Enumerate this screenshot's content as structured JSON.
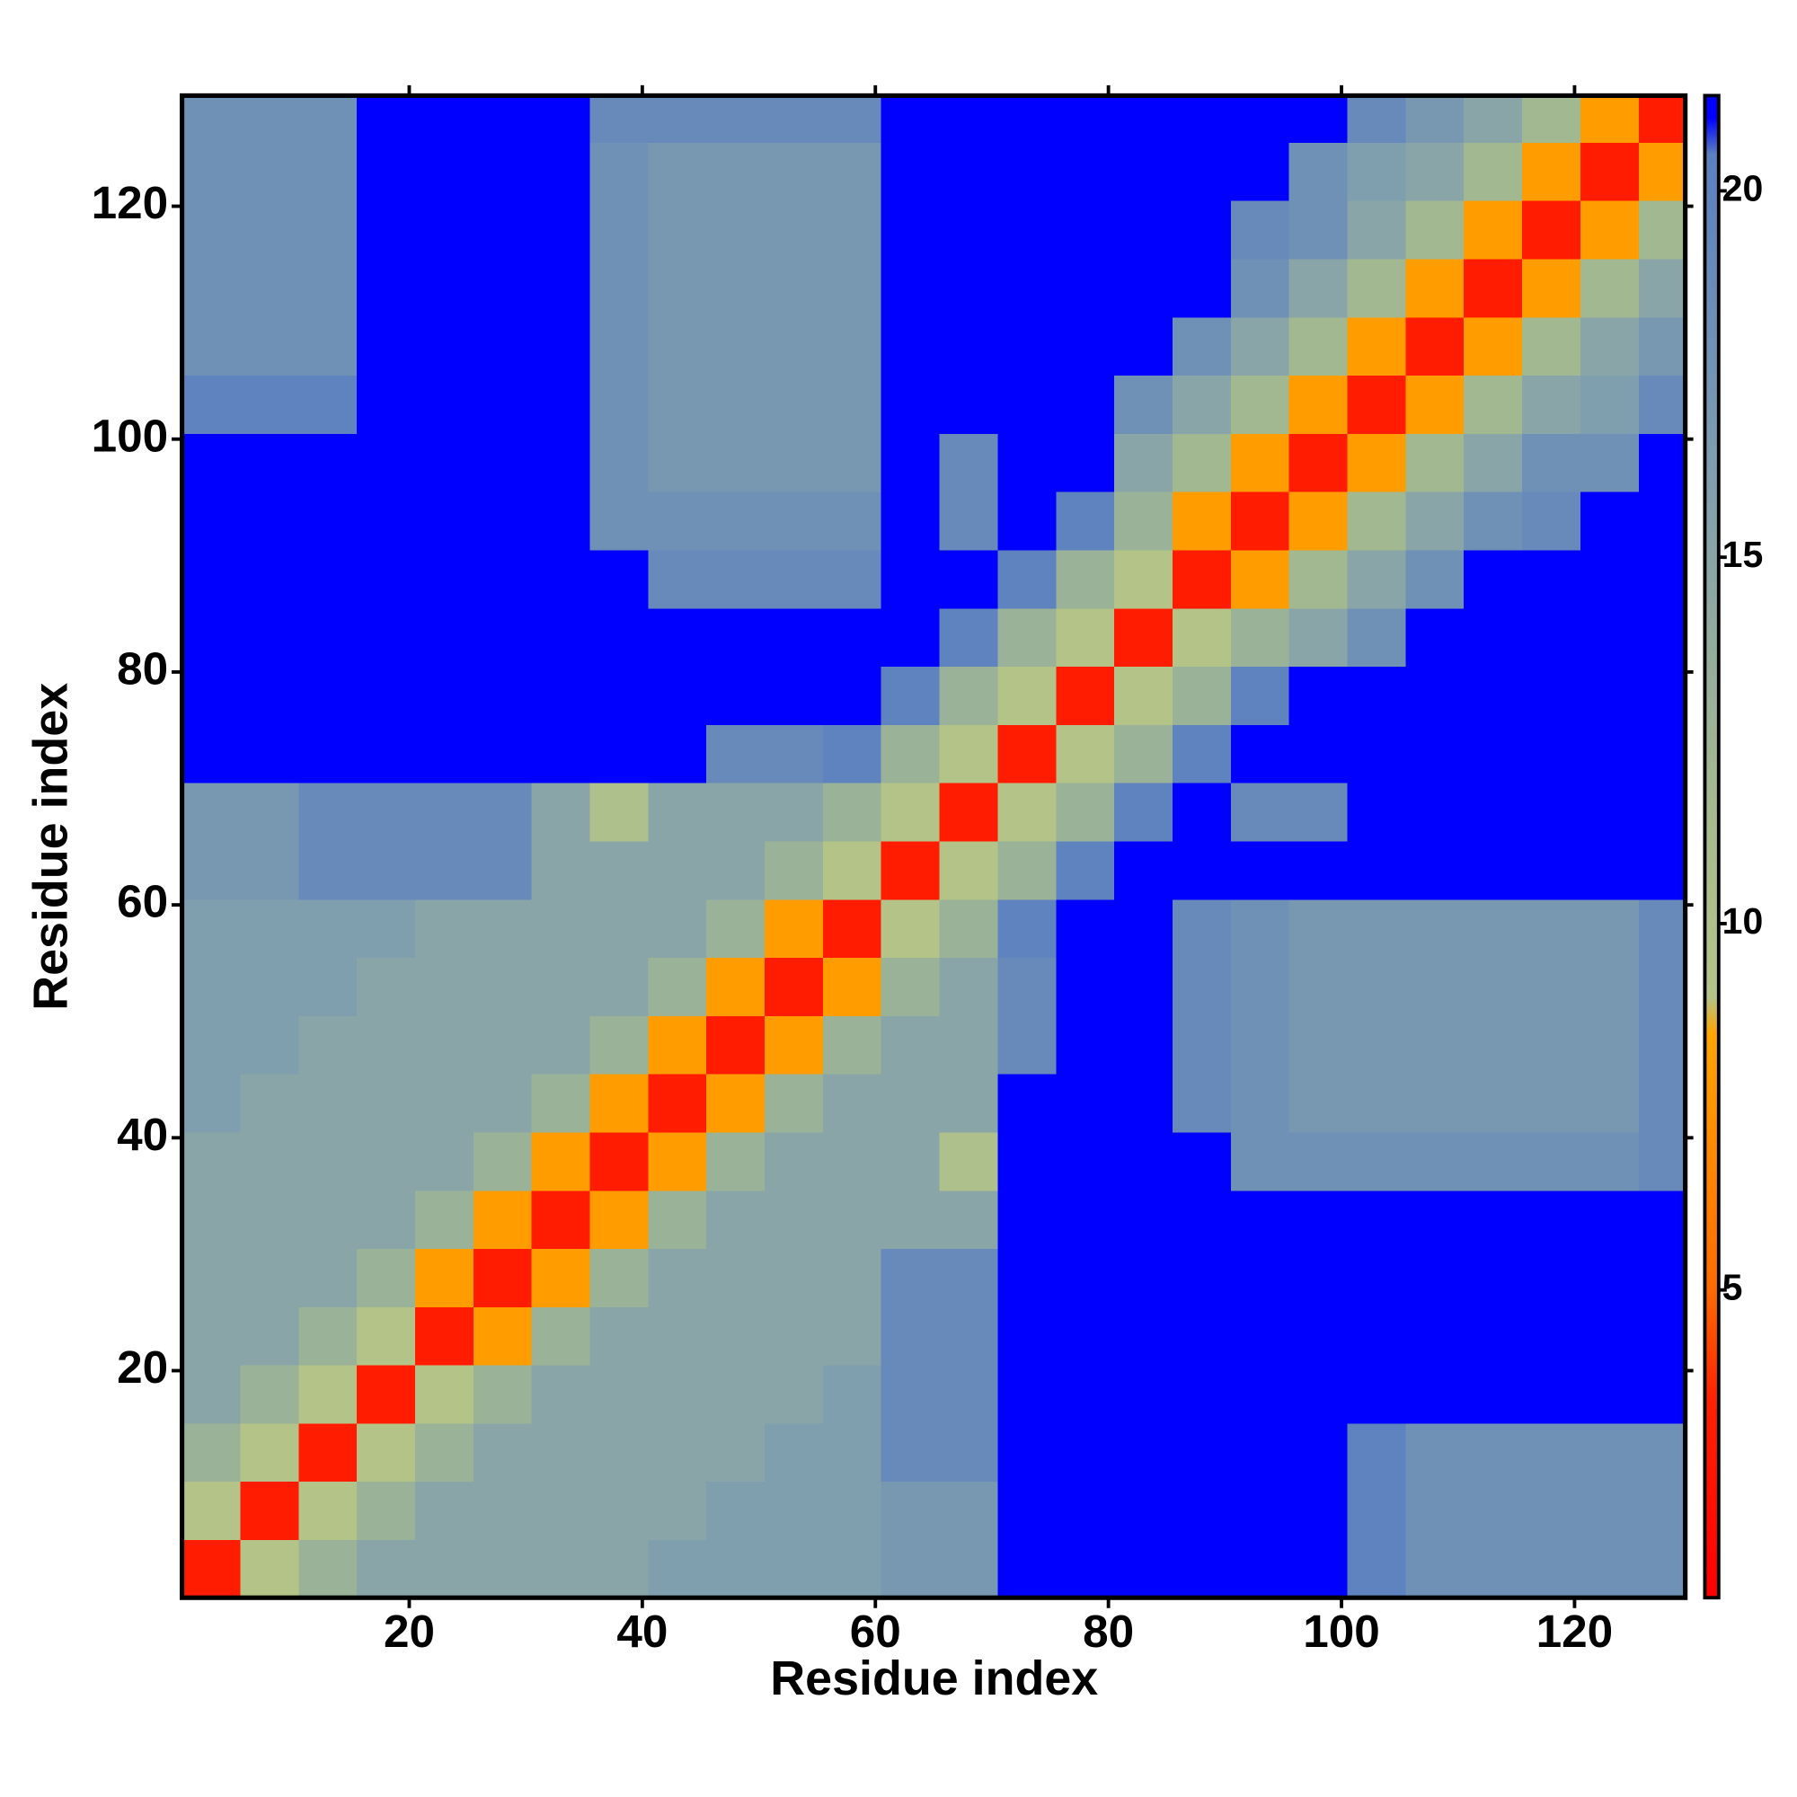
{
  "chart_data": {
    "type": "heatmap",
    "xlabel": "Residue index",
    "ylabel": "Residue index",
    "x": [
      3,
      8,
      13,
      18,
      23,
      28,
      33,
      38,
      43,
      48,
      53,
      58,
      63,
      68,
      73,
      78,
      83,
      88,
      93,
      98,
      103,
      108,
      113,
      118,
      123,
      128
    ],
    "y": [
      3,
      8,
      13,
      18,
      23,
      28,
      33,
      38,
      43,
      48,
      53,
      58,
      63,
      68,
      73,
      78,
      83,
      88,
      93,
      98,
      103,
      108,
      113,
      118,
      123,
      128
    ],
    "xlim": [
      0.5,
      129.5
    ],
    "ylim": [
      0.5,
      129.5
    ],
    "xticks": [
      20,
      40,
      60,
      80,
      100,
      120
    ],
    "yticks": [
      20,
      40,
      60,
      80,
      100,
      120
    ],
    "clim": [
      0.8,
      21.3
    ],
    "cticks": [
      5,
      10,
      15,
      20
    ],
    "colorscale": [
      {
        "value": 0.8,
        "color": "#ff0000"
      },
      {
        "value": 3.5,
        "color": "#ff2200"
      },
      {
        "value": 5,
        "color": "#ff6a00"
      },
      {
        "value": 8.5,
        "color": "#ffa500"
      },
      {
        "value": 9,
        "color": "#b4c488"
      },
      {
        "value": 12,
        "color": "#a2b890"
      },
      {
        "value": 16,
        "color": "#809fae"
      },
      {
        "value": 20.5,
        "color": "#5a80c0"
      },
      {
        "value": 21,
        "color": "#0000ff"
      },
      {
        "value": 21.3,
        "color": "#0000ff"
      }
    ],
    "values": [
      [
        3,
        9,
        13,
        15,
        15,
        15,
        15,
        15,
        16,
        16,
        16,
        16,
        17,
        17,
        21,
        21,
        21,
        21,
        21,
        21,
        20,
        18,
        18,
        18,
        18,
        18
      ],
      [
        9,
        3,
        9,
        13,
        15,
        15,
        15,
        15,
        15,
        16,
        16,
        16,
        17,
        17,
        21,
        21,
        21,
        21,
        21,
        21,
        20,
        18,
        18,
        18,
        18,
        18
      ],
      [
        13,
        9,
        3,
        9,
        13,
        15,
        15,
        15,
        15,
        15,
        16,
        16,
        19,
        19,
        21,
        21,
        21,
        21,
        21,
        21,
        20,
        18,
        18,
        18,
        18,
        18
      ],
      [
        15,
        13,
        9,
        3,
        9,
        13,
        15,
        15,
        15,
        15,
        15,
        16,
        19,
        19,
        21,
        21,
        21,
        21,
        21,
        21,
        21,
        21,
        21,
        21,
        21,
        21
      ],
      [
        15,
        15,
        13,
        9,
        3,
        8,
        13,
        15,
        15,
        15,
        15,
        15,
        19,
        19,
        21,
        21,
        21,
        21,
        21,
        21,
        21,
        21,
        21,
        21,
        21,
        21
      ],
      [
        15,
        15,
        15,
        13,
        8,
        3,
        8,
        13,
        15,
        15,
        15,
        15,
        19,
        19,
        21,
        21,
        21,
        21,
        21,
        21,
        21,
        21,
        21,
        21,
        21,
        21
      ],
      [
        15,
        15,
        15,
        15,
        13,
        8,
        3,
        8,
        13,
        15,
        15,
        15,
        15,
        15,
        21,
        21,
        21,
        21,
        21,
        21,
        21,
        21,
        21,
        21,
        21,
        21
      ],
      [
        15,
        15,
        15,
        15,
        15,
        13,
        8,
        3,
        8,
        13,
        15,
        15,
        15,
        10,
        21,
        21,
        21,
        21,
        18,
        18,
        18,
        18,
        18,
        18,
        18,
        19
      ],
      [
        16,
        15,
        15,
        15,
        15,
        15,
        13,
        8,
        3,
        8,
        13,
        15,
        15,
        15,
        21,
        21,
        21,
        19,
        18,
        17,
        17,
        17,
        17,
        17,
        17,
        19
      ],
      [
        16,
        16,
        15,
        15,
        15,
        15,
        15,
        13,
        8,
        3,
        8,
        13,
        15,
        15,
        19,
        21,
        21,
        19,
        18,
        17,
        17,
        17,
        17,
        17,
        17,
        19
      ],
      [
        16,
        16,
        16,
        15,
        15,
        15,
        15,
        15,
        13,
        8,
        3,
        8,
        13,
        15,
        19,
        21,
        21,
        19,
        18,
        17,
        17,
        17,
        17,
        17,
        17,
        19
      ],
      [
        16,
        16,
        16,
        16,
        15,
        15,
        15,
        15,
        15,
        13,
        8,
        3,
        9,
        13,
        20,
        21,
        21,
        19,
        18,
        17,
        17,
        17,
        17,
        17,
        17,
        19
      ],
      [
        17,
        17,
        19,
        19,
        19,
        19,
        15,
        15,
        15,
        15,
        13,
        9,
        3,
        9,
        13,
        20,
        21,
        21,
        21,
        21,
        21,
        21,
        21,
        21,
        21,
        21
      ],
      [
        17,
        17,
        19,
        19,
        19,
        19,
        15,
        10,
        15,
        15,
        15,
        13,
        9,
        3,
        9,
        13,
        20,
        21,
        19,
        19,
        21,
        21,
        21,
        21,
        21,
        21
      ],
      [
        21,
        21,
        21,
        21,
        21,
        21,
        21,
        21,
        21,
        19,
        19,
        20,
        13,
        9,
        3,
        9,
        13,
        20,
        21,
        21,
        21,
        21,
        21,
        21,
        21,
        21
      ],
      [
        21,
        21,
        21,
        21,
        21,
        21,
        21,
        21,
        21,
        21,
        21,
        21,
        20,
        13,
        9,
        3,
        9,
        13,
        20,
        21,
        21,
        21,
        21,
        21,
        21,
        21
      ],
      [
        21,
        21,
        21,
        21,
        21,
        21,
        21,
        21,
        21,
        21,
        21,
        21,
        21,
        20,
        13,
        9,
        3,
        9,
        13,
        15,
        18,
        21,
        21,
        21,
        21,
        21
      ],
      [
        21,
        21,
        21,
        21,
        21,
        21,
        21,
        21,
        19,
        19,
        19,
        19,
        21,
        21,
        20,
        13,
        9,
        3,
        8,
        12,
        15,
        18,
        21,
        21,
        21,
        21
      ],
      [
        21,
        21,
        21,
        21,
        21,
        21,
        21,
        18,
        18,
        18,
        18,
        18,
        21,
        19,
        21,
        20,
        13,
        8,
        3,
        8,
        12,
        15,
        18,
        19,
        21,
        21
      ],
      [
        21,
        21,
        21,
        21,
        21,
        21,
        21,
        18,
        17,
        17,
        17,
        17,
        21,
        19,
        21,
        21,
        15,
        12,
        8,
        3,
        8,
        12,
        15,
        18,
        18,
        21
      ],
      [
        20,
        20,
        20,
        21,
        21,
        21,
        21,
        18,
        17,
        17,
        17,
        17,
        21,
        21,
        21,
        21,
        18,
        15,
        12,
        8,
        3,
        8,
        12,
        15,
        16,
        19
      ],
      [
        18,
        18,
        18,
        21,
        21,
        21,
        21,
        18,
        17,
        17,
        17,
        17,
        21,
        21,
        21,
        21,
        21,
        18,
        15,
        12,
        8,
        3,
        8,
        12,
        15,
        17
      ],
      [
        18,
        18,
        18,
        21,
        21,
        21,
        21,
        18,
        17,
        17,
        17,
        17,
        21,
        21,
        21,
        21,
        21,
        21,
        18,
        15,
        12,
        8,
        3,
        8,
        12,
        15
      ],
      [
        18,
        18,
        18,
        21,
        21,
        21,
        21,
        18,
        17,
        17,
        17,
        17,
        21,
        21,
        21,
        21,
        21,
        21,
        19,
        18,
        15,
        12,
        8,
        3,
        8,
        12
      ],
      [
        18,
        18,
        18,
        21,
        21,
        21,
        21,
        18,
        17,
        17,
        17,
        17,
        21,
        21,
        21,
        21,
        21,
        21,
        21,
        18,
        16,
        15,
        12,
        8,
        3,
        8
      ],
      [
        18,
        18,
        18,
        21,
        21,
        21,
        21,
        19,
        19,
        19,
        19,
        19,
        21,
        21,
        21,
        21,
        21,
        21,
        21,
        21,
        19,
        17,
        15,
        12,
        8,
        3
      ]
    ]
  }
}
